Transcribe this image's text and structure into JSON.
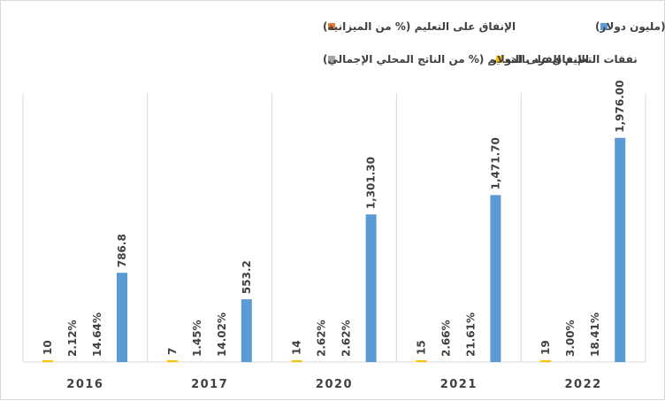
{
  "chart_data": {
    "type": "bar",
    "categories": [
      "2016",
      "2017",
      "2020",
      "2021",
      "2022"
    ],
    "series": [
      {
        "name": "نفقات التعليم (مليون دولار)",
        "color": "#5b9bd5",
        "values": [
          786.8,
          553.2,
          1301.3,
          1471.7,
          1976.0
        ],
        "labels": [
          "786.8",
          "553.2",
          "1,301.30",
          "1,471.70",
          "1,976.00"
        ]
      },
      {
        "name": "الإنفاق على التعليم (% من الميزانية)",
        "color": "#ed7d31",
        "values": [
          14.64,
          14.02,
          2.62,
          21.61,
          18.41
        ],
        "labels": [
          "14.64%",
          "14.02%",
          "2.62%",
          "21.61%",
          "18.41%"
        ]
      },
      {
        "name": "الإنفاق على التعليم (% من الناتج المحلي الإجمالي)",
        "color": "#a5a5a5",
        "values": [
          2.12,
          1.45,
          2.62,
          2.66,
          3.0
        ],
        "labels": [
          "2.12%",
          "1.45%",
          "2.62%",
          "2.66%",
          "3.00%"
        ]
      },
      {
        "name": "نفقات التعليم للفرد بالدولار",
        "color": "#ffc000",
        "values": [
          10,
          7,
          14,
          15,
          19
        ],
        "labels": [
          "10",
          "7",
          "14",
          "15",
          "19"
        ]
      }
    ],
    "ylim": [
      0,
      2200
    ],
    "grid": false,
    "legend_position": "top"
  }
}
